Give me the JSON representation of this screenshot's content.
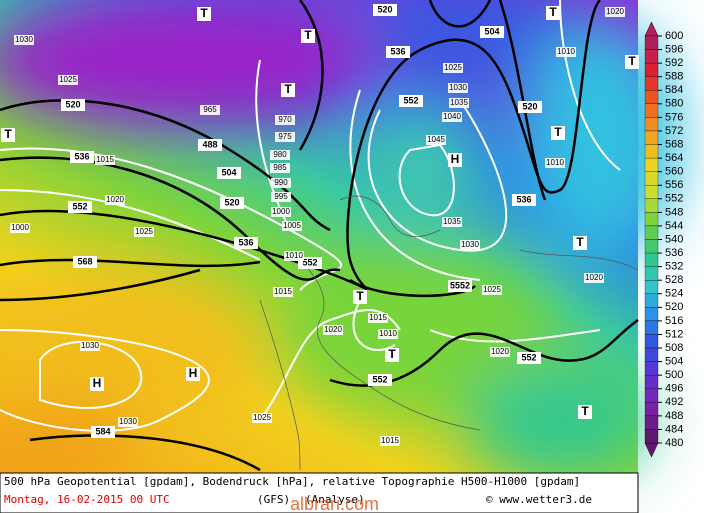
{
  "map": {
    "labels": [
      "520",
      "536",
      "552",
      "568",
      "584",
      "504",
      "488",
      "520",
      "536",
      "552",
      "552",
      "5552",
      "552",
      "536",
      "552",
      "520",
      "504",
      "520",
      "536",
      "1030",
      "1025",
      "1015",
      "1020",
      "1025",
      "1000",
      "1030",
      "1030",
      "1025",
      "1015",
      "1020",
      "1015",
      "1010",
      "1015",
      "1020",
      "1025",
      "1030",
      "1035",
      "1045",
      "1040",
      "1035",
      "1030",
      "1025",
      "1020",
      "1010",
      "1010",
      "1020",
      "970",
      "975",
      "980",
      "985",
      "990",
      "995",
      "1000",
      "1005",
      "1010",
      "965",
      "T",
      "T",
      "T",
      "T",
      "T",
      "T",
      "T",
      "T",
      "T",
      "T",
      "T",
      "H",
      "H",
      "H"
    ]
  },
  "legend": {
    "ticks": [
      600,
      596,
      592,
      588,
      584,
      580,
      576,
      572,
      568,
      564,
      560,
      556,
      552,
      548,
      544,
      540,
      536,
      532,
      528,
      524,
      520,
      516,
      512,
      508,
      504,
      500,
      496,
      492,
      488,
      484,
      480
    ]
  },
  "footer": {
    "line1": "500 hPa Geopotential [gpdam], Bodendruck [hPa], relative Topographie H500-H1000 [gpdam]",
    "date": "Montag, 16-02-2015  00 UTC",
    "model": "(GFS)",
    "run": "(Analyse)",
    "credit": "© www.wetter3.de",
    "watermark": "albrari.com"
  }
}
